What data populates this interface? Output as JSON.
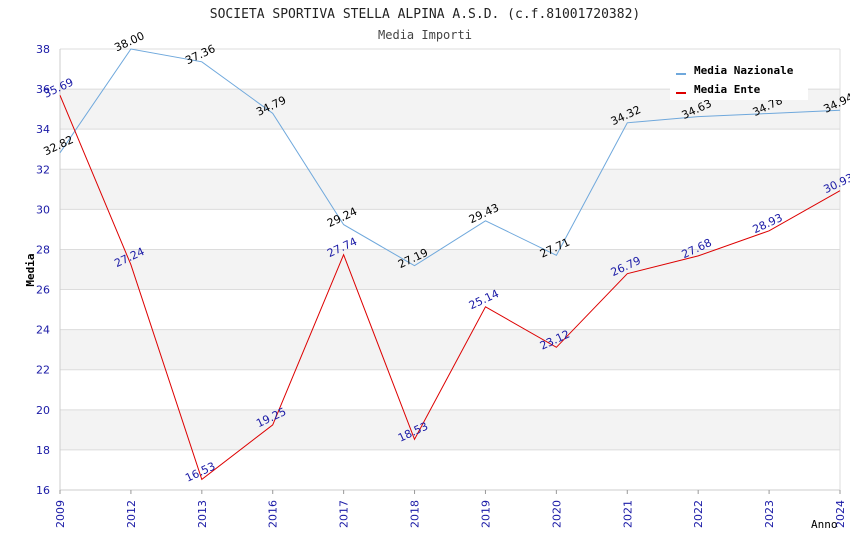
{
  "chart_data": {
    "type": "line",
    "title": "SOCIETA SPORTIVA STELLA ALPINA A.S.D. (c.f.81001720382)",
    "subtitle": "Media Importi",
    "xlabel": "Anno",
    "ylabel": "Media",
    "ylim": [
      16,
      38
    ],
    "yticks": [
      "16",
      "18",
      "20",
      "22",
      "24",
      "26",
      "28",
      "30",
      "32",
      "34",
      "36",
      "38"
    ],
    "categories": [
      "2009",
      "2012",
      "2013",
      "2016",
      "2017",
      "2018",
      "2019",
      "2020",
      "2021",
      "2022",
      "2023",
      "2024"
    ],
    "grid": true,
    "legend_position": "top-right",
    "series": [
      {
        "name": "Media Nazionale",
        "color": "#6fa8dc",
        "values": [
          32.82,
          38.0,
          37.36,
          34.79,
          29.24,
          27.19,
          29.43,
          27.71,
          34.32,
          34.63,
          34.78,
          34.94
        ],
        "labels": [
          "32.82",
          "38.00",
          "37.36",
          "34.79",
          "29.24",
          "27.19",
          "29.43",
          "27.71",
          "34.32",
          "34.63",
          "34.78",
          "34.94"
        ]
      },
      {
        "name": "Media Ente",
        "color": "#dd0000",
        "values": [
          35.69,
          27.24,
          16.53,
          19.25,
          27.74,
          18.53,
          25.14,
          23.12,
          26.79,
          27.68,
          28.93,
          30.93
        ],
        "labels": [
          "35.69",
          "27.24",
          "16.53",
          "19.25",
          "27.74",
          "18.53",
          "25.14",
          "23.12",
          "26.79",
          "27.68",
          "28.93",
          "30.93"
        ]
      }
    ]
  }
}
